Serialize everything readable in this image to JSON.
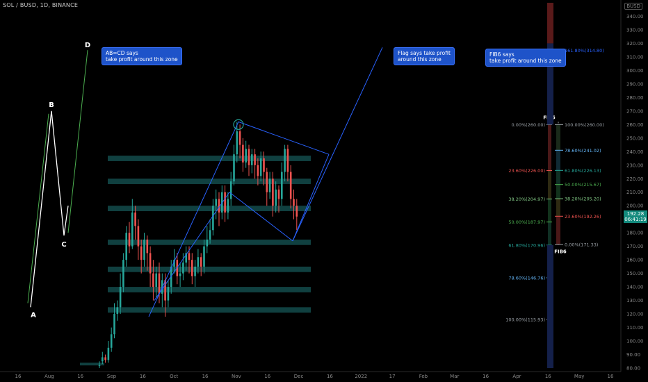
{
  "header": {
    "symbol": "SOL / BUSD, 1D, BINANCE",
    "axis_currency": "BUSD",
    "axis_menu": "≡"
  },
  "last_price": {
    "value": "192.28",
    "countdown": "06:41:19"
  },
  "callouts": {
    "abcd": [
      "AB=CD says",
      "take profit around this zone"
    ],
    "flag": [
      "Flag says take profit",
      "around this zone"
    ],
    "fib6": [
      "FIB6 says",
      "take profit around this zone"
    ]
  },
  "colors": {
    "background": "#000000",
    "up": "#26a69a",
    "down": "#ef5350",
    "pattern": "#2962ff",
    "zone": "#134b4b",
    "callout": "#1e53c9"
  },
  "chart_data": {
    "type": "candlestick",
    "y_axis": {
      "min": 80,
      "max": 350,
      "ticks": [
        80,
        90,
        100,
        110,
        120,
        130,
        140,
        150,
        160,
        170,
        180,
        190,
        200,
        210,
        220,
        230,
        240,
        250,
        260,
        270,
        280,
        290,
        300,
        310,
        320,
        330,
        340
      ]
    },
    "x_axis_ticks": [
      "16",
      "Aug",
      "16",
      "Sep",
      "16",
      "Oct",
      "16",
      "Nov",
      "16",
      "Dec",
      "16",
      "2022",
      "17",
      "Feb",
      "Mar",
      "16",
      "Apr",
      "16",
      "May",
      "16"
    ],
    "candles": [
      [
        82,
        82,
        85,
        80
      ],
      [
        85,
        88,
        92,
        83
      ],
      [
        88,
        86,
        90,
        84
      ],
      [
        86,
        95,
        100,
        84
      ],
      [
        95,
        105,
        110,
        92
      ],
      [
        105,
        120,
        128,
        102
      ],
      [
        120,
        125,
        130,
        115
      ],
      [
        125,
        140,
        150,
        120
      ],
      [
        140,
        160,
        165,
        136
      ],
      [
        160,
        180,
        185,
        155
      ],
      [
        180,
        170,
        188,
        165
      ],
      [
        170,
        195,
        205,
        168
      ],
      [
        195,
        185,
        200,
        175
      ],
      [
        185,
        170,
        190,
        160
      ],
      [
        170,
        160,
        175,
        150
      ],
      [
        160,
        175,
        180,
        155
      ],
      [
        175,
        165,
        178,
        152
      ],
      [
        165,
        150,
        170,
        140
      ],
      [
        150,
        140,
        160,
        130
      ],
      [
        140,
        150,
        155,
        132
      ],
      [
        150,
        135,
        158,
        128
      ],
      [
        135,
        145,
        150,
        125
      ],
      [
        145,
        130,
        150,
        118
      ],
      [
        130,
        140,
        145,
        125
      ],
      [
        140,
        155,
        160,
        135
      ],
      [
        155,
        160,
        168,
        150
      ],
      [
        160,
        148,
        165,
        142
      ],
      [
        148,
        150,
        158,
        140
      ],
      [
        150,
        158,
        165,
        145
      ],
      [
        158,
        165,
        170,
        152
      ],
      [
        165,
        160,
        170,
        150
      ],
      [
        160,
        148,
        165,
        142
      ],
      [
        148,
        155,
        160,
        140
      ],
      [
        155,
        162,
        168,
        150
      ],
      [
        162,
        155,
        165,
        148
      ],
      [
        155,
        170,
        175,
        150
      ],
      [
        170,
        175,
        185,
        165
      ],
      [
        175,
        182,
        190,
        172
      ],
      [
        182,
        200,
        205,
        178
      ],
      [
        200,
        205,
        212,
        190
      ],
      [
        205,
        195,
        210,
        185
      ],
      [
        195,
        210,
        215,
        190
      ],
      [
        210,
        195,
        215,
        188
      ],
      [
        195,
        205,
        210,
        190
      ],
      [
        205,
        218,
        225,
        200
      ],
      [
        218,
        238,
        245,
        215
      ],
      [
        238,
        255,
        262,
        232
      ],
      [
        255,
        245,
        260,
        235
      ],
      [
        245,
        232,
        250,
        225
      ],
      [
        232,
        242,
        248,
        228
      ],
      [
        242,
        230,
        245,
        222
      ],
      [
        230,
        238,
        242,
        224
      ],
      [
        238,
        230,
        242,
        220
      ],
      [
        230,
        222,
        235,
        215
      ],
      [
        222,
        235,
        240,
        218
      ],
      [
        235,
        225,
        240,
        215
      ],
      [
        225,
        210,
        228,
        200
      ],
      [
        210,
        220,
        225,
        205
      ],
      [
        220,
        200,
        225,
        192
      ],
      [
        200,
        212,
        218,
        195
      ],
      [
        212,
        205,
        215,
        195
      ],
      [
        205,
        225,
        232,
        200
      ],
      [
        225,
        242,
        245,
        218
      ],
      [
        242,
        225,
        245,
        218
      ],
      [
        225,
        205,
        230,
        198
      ],
      [
        205,
        200,
        212,
        190
      ],
      [
        200,
        192,
        205,
        182
      ]
    ],
    "zones": [
      [
        82,
        84
      ],
      [
        121,
        125
      ],
      [
        136,
        140
      ],
      [
        151,
        155
      ],
      [
        171,
        175
      ],
      [
        196,
        200
      ],
      [
        216,
        220
      ],
      [
        233,
        237
      ]
    ],
    "pattern_points": [
      {
        "label": "A",
        "y": 125
      },
      {
        "label": "B",
        "y": 270
      },
      {
        "label": "C",
        "y": 178
      },
      {
        "label": "D",
        "y": 315
      }
    ],
    "flag_target": 320,
    "fib5": {
      "title": "FIB5",
      "levels": [
        {
          "label": "0.00%(260.00)",
          "value": 260,
          "color": "#9aa0a6"
        },
        {
          "label": "23.60%(226.00)",
          "value": 226,
          "color": "#ef5350"
        },
        {
          "label": "38.20%(204.97)",
          "value": 204.97,
          "color": "#81c784"
        },
        {
          "label": "50.00%(187.97)",
          "value": 187.97,
          "color": "#4caf50"
        },
        {
          "label": "61.80%(170.96)",
          "value": 170.96,
          "color": "#26a69a"
        },
        {
          "label": "78.60%(146.76)",
          "value": 146.76,
          "color": "#64b5f6"
        },
        {
          "label": "100.00%(115.93)",
          "value": 115.93,
          "color": "#9aa0a6"
        }
      ]
    },
    "fib6": {
      "title": "FIB6",
      "levels": [
        {
          "label": "161.80%(314.80)",
          "value": 314.8,
          "color": "#2962ff"
        },
        {
          "label": "100.00%(260.00)",
          "value": 260,
          "color": "#9aa0a6"
        },
        {
          "label": "78.60%(241.02)",
          "value": 241.02,
          "color": "#64b5f6"
        },
        {
          "label": "61.80%(226.13)",
          "value": 226.13,
          "color": "#26a69a"
        },
        {
          "label": "50.00%(215.67)",
          "value": 215.67,
          "color": "#4caf50"
        },
        {
          "label": "38.20%(205.20)",
          "value": 205.2,
          "color": "#81c784"
        },
        {
          "label": "23.60%(192.26)",
          "value": 192.26,
          "color": "#ef5350"
        },
        {
          "label": "0.00%(171.33)",
          "value": 171.33,
          "color": "#9aa0a6"
        }
      ]
    }
  }
}
